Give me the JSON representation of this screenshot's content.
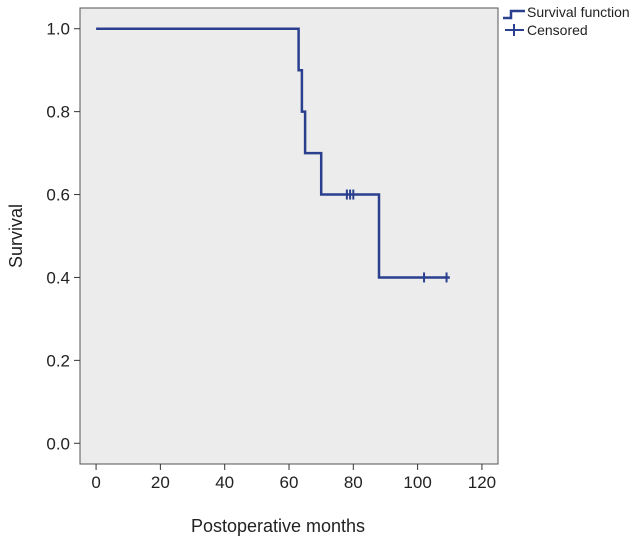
{
  "chart_data": {
    "type": "line",
    "step": true,
    "xlabel": "Postoperative months",
    "ylabel": "Survival",
    "xlim": [
      -5,
      125
    ],
    "ylim": [
      -0.05,
      1.05
    ],
    "x_ticks": [
      0,
      20,
      40,
      60,
      80,
      100,
      120
    ],
    "y_ticks": [
      0.0,
      0.2,
      0.4,
      0.6,
      0.8,
      1.0
    ],
    "x_tick_labels": [
      "0",
      "20",
      "40",
      "60",
      "80",
      "100",
      "120"
    ],
    "y_tick_labels": [
      "0.0",
      "0.2",
      "0.4",
      "0.6",
      "0.8",
      "1.0"
    ],
    "grid": false,
    "plot_background": "#ececec",
    "series": [
      {
        "name": "Survival function",
        "color": "#2b3f8f",
        "points": [
          [
            0,
            1.0
          ],
          [
            63,
            1.0
          ],
          [
            63,
            0.9
          ],
          [
            64,
            0.9
          ],
          [
            64,
            0.8
          ],
          [
            65,
            0.8
          ],
          [
            65,
            0.7
          ],
          [
            70,
            0.7
          ],
          [
            70,
            0.6
          ],
          [
            88,
            0.6
          ],
          [
            88,
            0.4
          ],
          [
            110,
            0.4
          ]
        ]
      },
      {
        "name": "Censored",
        "color": "#2b3f8f",
        "marker": "+",
        "points": [
          [
            78,
            0.6
          ],
          [
            79,
            0.6
          ],
          [
            80,
            0.6
          ],
          [
            102,
            0.4
          ],
          [
            109,
            0.4
          ]
        ]
      }
    ],
    "legend": {
      "position": "top-right",
      "entries": [
        "Survival function",
        "Censored"
      ]
    }
  }
}
